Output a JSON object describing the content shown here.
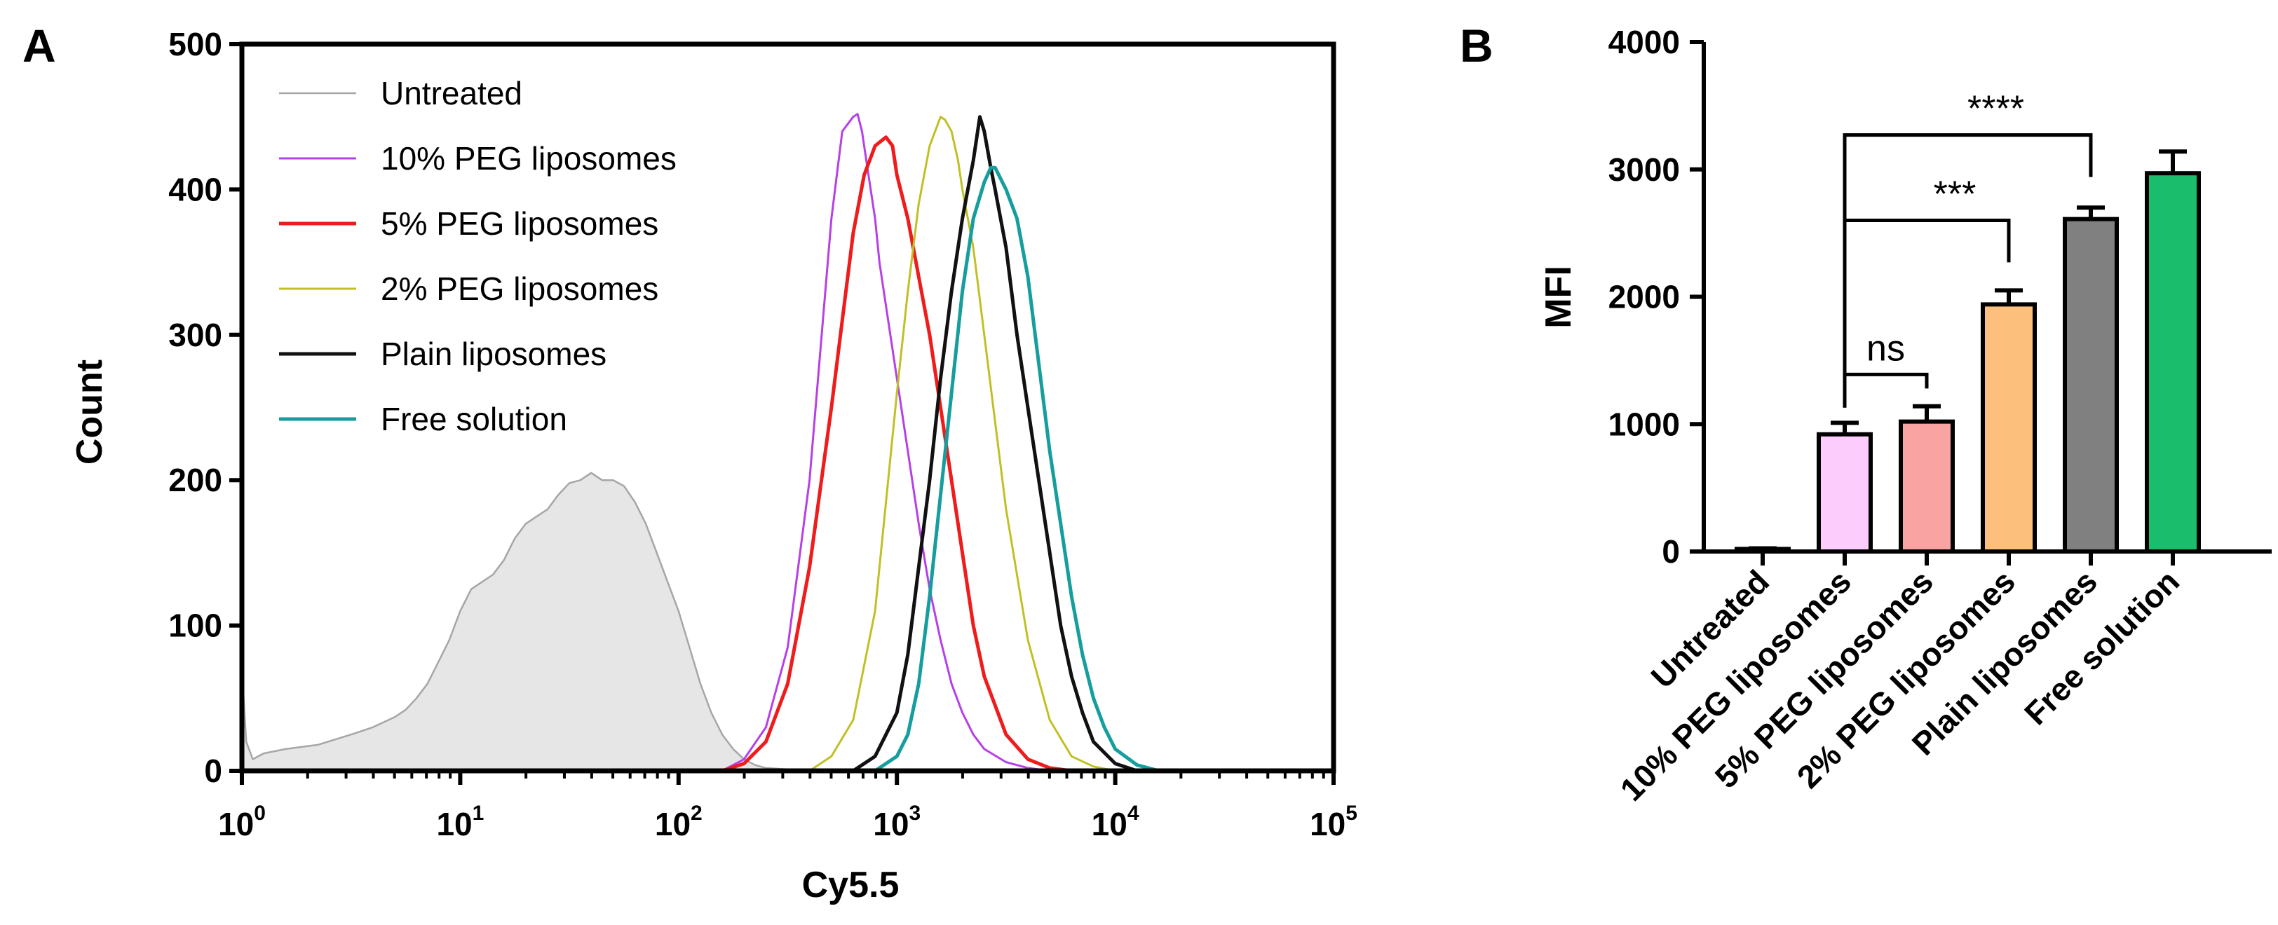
{
  "panels": {
    "a": "A",
    "b": "B"
  },
  "chart_data": [
    {
      "type": "line",
      "panel": "A",
      "title": "",
      "xlabel": "Cy5.5",
      "ylabel": "Count",
      "xscale": "log10",
      "xlim": [
        1,
        100000
      ],
      "ylim": [
        0,
        500
      ],
      "yticks": [
        0,
        100,
        200,
        300,
        400,
        500
      ],
      "xtick_exponents": [
        0,
        1,
        2,
        3,
        4,
        5
      ],
      "xtick_base": "10",
      "legend_position": "top-left",
      "series": [
        {
          "name": "Untreated",
          "color": "#a6a6a6",
          "fill": "#e6e6e6",
          "width": 2.5,
          "log_x": [
            0.0,
            0.02,
            0.05,
            0.1,
            0.2,
            0.35,
            0.5,
            0.6,
            0.7,
            0.75,
            0.8,
            0.85,
            0.9,
            0.95,
            1.0,
            1.05,
            1.1,
            1.15,
            1.2,
            1.25,
            1.3,
            1.35,
            1.4,
            1.45,
            1.5,
            1.55,
            1.6,
            1.65,
            1.7,
            1.75,
            1.8,
            1.85,
            1.9,
            1.95,
            2.0,
            2.05,
            2.1,
            2.15,
            2.2,
            2.25,
            2.3,
            2.35,
            2.4,
            2.5,
            2.6,
            3.0
          ],
          "y": [
            70,
            20,
            8,
            12,
            15,
            18,
            25,
            30,
            37,
            42,
            50,
            60,
            75,
            90,
            110,
            125,
            130,
            135,
            145,
            160,
            170,
            175,
            180,
            190,
            198,
            200,
            205,
            200,
            200,
            196,
            185,
            170,
            150,
            130,
            110,
            85,
            60,
            40,
            25,
            15,
            8,
            4,
            2,
            1,
            0,
            0
          ]
        },
        {
          "name": "10% PEG liposomes",
          "color": "#b640e8",
          "fill": "none",
          "width": 3,
          "log_x": [
            2.2,
            2.3,
            2.4,
            2.5,
            2.6,
            2.65,
            2.7,
            2.75,
            2.8,
            2.82,
            2.84,
            2.86,
            2.88,
            2.9,
            2.92,
            2.95,
            3.0,
            3.05,
            3.1,
            3.15,
            3.2,
            3.25,
            3.3,
            3.35,
            3.4,
            3.5,
            3.6,
            3.7,
            3.8,
            5.0
          ],
          "y": [
            0,
            8,
            30,
            85,
            200,
            290,
            380,
            440,
            450,
            452,
            440,
            420,
            400,
            380,
            350,
            320,
            270,
            220,
            170,
            125,
            90,
            60,
            40,
            25,
            15,
            6,
            2,
            0,
            0,
            0
          ]
        },
        {
          "name": "5% PEG liposomes",
          "color": "#ee1c1c",
          "fill": "none",
          "width": 5,
          "log_x": [
            2.2,
            2.3,
            2.4,
            2.5,
            2.6,
            2.7,
            2.75,
            2.8,
            2.85,
            2.9,
            2.95,
            2.98,
            3.0,
            3.05,
            3.1,
            3.15,
            3.2,
            3.25,
            3.3,
            3.35,
            3.4,
            3.5,
            3.6,
            3.7,
            3.8,
            5.0
          ],
          "y": [
            0,
            5,
            20,
            60,
            140,
            250,
            310,
            370,
            410,
            430,
            436,
            430,
            410,
            380,
            340,
            300,
            250,
            200,
            150,
            100,
            65,
            25,
            8,
            2,
            0,
            0
          ]
        },
        {
          "name": "2% PEG liposomes",
          "color": "#c0c025",
          "fill": "none",
          "width": 3,
          "log_x": [
            2.6,
            2.7,
            2.8,
            2.9,
            3.0,
            3.05,
            3.1,
            3.15,
            3.2,
            3.22,
            3.25,
            3.28,
            3.3,
            3.35,
            3.4,
            3.45,
            3.5,
            3.6,
            3.7,
            3.8,
            3.9,
            4.0,
            5.0
          ],
          "y": [
            0,
            10,
            35,
            110,
            260,
            330,
            390,
            430,
            450,
            448,
            440,
            420,
            400,
            360,
            300,
            240,
            180,
            90,
            35,
            10,
            3,
            0,
            0
          ]
        },
        {
          "name": "Plain liposomes",
          "color": "#111111",
          "fill": "none",
          "width": 5,
          "log_x": [
            2.8,
            2.9,
            3.0,
            3.05,
            3.1,
            3.15,
            3.2,
            3.25,
            3.3,
            3.35,
            3.38,
            3.4,
            3.43,
            3.45,
            3.5,
            3.55,
            3.6,
            3.65,
            3.7,
            3.75,
            3.8,
            3.85,
            3.9,
            4.0,
            4.1,
            5.0
          ],
          "y": [
            0,
            10,
            40,
            80,
            140,
            200,
            270,
            330,
            380,
            420,
            450,
            440,
            415,
            400,
            360,
            300,
            250,
            200,
            150,
            100,
            65,
            40,
            20,
            5,
            0,
            0
          ]
        },
        {
          "name": "Free solution",
          "color": "#169e9e",
          "fill": "none",
          "width": 5,
          "log_x": [
            2.9,
            3.0,
            3.05,
            3.1,
            3.15,
            3.2,
            3.25,
            3.3,
            3.35,
            3.4,
            3.43,
            3.45,
            3.5,
            3.55,
            3.6,
            3.65,
            3.7,
            3.75,
            3.8,
            3.85,
            3.9,
            3.95,
            4.0,
            4.1,
            4.2,
            5.0
          ],
          "y": [
            0,
            10,
            25,
            60,
            120,
            190,
            260,
            330,
            380,
            405,
            415,
            415,
            400,
            380,
            340,
            280,
            220,
            170,
            120,
            80,
            50,
            30,
            15,
            4,
            0,
            0
          ]
        }
      ]
    },
    {
      "type": "bar",
      "panel": "B",
      "title": "",
      "xlabel": "",
      "ylabel": "MFI",
      "ylim": [
        0,
        4000
      ],
      "yticks": [
        0,
        1000,
        2000,
        3000,
        4000
      ],
      "categories": [
        "Untreated",
        "10% PEG liposomes",
        "5% PEG liposomes",
        "2% PEG liposomes",
        "Plain liposomes",
        "Free solution"
      ],
      "values": [
        20,
        920,
        1020,
        1940,
        2610,
        2970
      ],
      "errors": [
        5,
        90,
        120,
        110,
        90,
        170
      ],
      "colors": [
        "#ffffff",
        "#fccdfc",
        "#f9a3a3",
        "#fdc07c",
        "#808080",
        "#19bd6c"
      ],
      "comparisons": [
        {
          "from": 1,
          "to": 2,
          "label": "ns",
          "level": 1390
        },
        {
          "from": 1,
          "to": 3,
          "label": "***",
          "level": 2600
        },
        {
          "from": 1,
          "to": 4,
          "label": "****",
          "level": 3270
        }
      ]
    }
  ]
}
